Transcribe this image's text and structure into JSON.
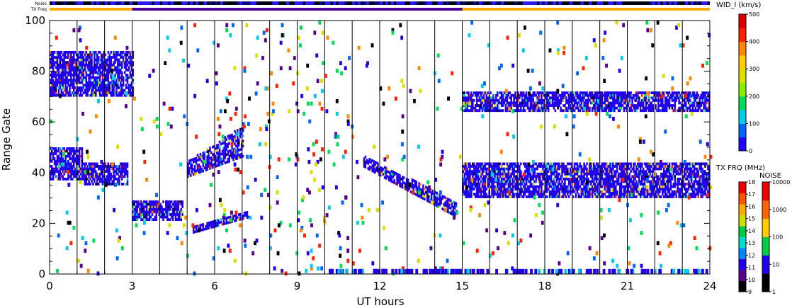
{
  "chart_data": {
    "type": "scatter",
    "title": "",
    "xlabel": "UT hours",
    "ylabel": "Range Gate",
    "xlim": [
      0,
      24
    ],
    "ylim": [
      0,
      100
    ],
    "x_ticks": [
      0,
      3,
      6,
      9,
      12,
      15,
      18,
      21,
      24
    ],
    "y_ticks": [
      0,
      20,
      40,
      60,
      80,
      100
    ],
    "grid": "vertical lines at each 3-hour boundary",
    "top_bars": {
      "noise_label": "Noise",
      "txfreq_label": "TX Freq",
      "txfreq_segments": [
        {
          "start": 0,
          "end": 3,
          "color": "#ffa500"
        },
        {
          "start": 3,
          "end": 15,
          "color": "#4b00a0"
        },
        {
          "start": 15,
          "end": 24,
          "color": "#ffa500"
        }
      ]
    },
    "colorbars": {
      "width": {
        "title": "WID_l (km/s)",
        "ticks": [
          "0",
          "100",
          "200",
          "300",
          "400",
          "500"
        ],
        "colors": [
          "#2200ff",
          "#0066ff",
          "#00ccee",
          "#00dd55",
          "#88ee00",
          "#dddd00",
          "#ffcc00",
          "#ff8800",
          "#ff2200",
          "#dd0000"
        ]
      },
      "txfreq": {
        "title": "TX FRQ (MHz)",
        "ticks": [
          "9",
          "10",
          "11",
          "12",
          "13",
          "14",
          "15",
          "16",
          "17",
          "18"
        ],
        "colors": [
          "#000000",
          "#5a0090",
          "#2200ee",
          "#0088ff",
          "#00ddcc",
          "#00cc44",
          "#ccdd00",
          "#ffaa00",
          "#ff5500",
          "#ee0000"
        ]
      },
      "noise": {
        "title": "NOISE",
        "ticks": [
          "1",
          "10",
          "100",
          "1000",
          "10000"
        ],
        "colors": [
          "#000000",
          "#2200ee",
          "#00cc44",
          "#ffcc00",
          "#ff6600",
          "#ee0000"
        ]
      }
    },
    "echo_bands": [
      {
        "x_start": 0.0,
        "x_end": 1.2,
        "gate_low": 37,
        "gate_high": 50,
        "color": "#2200ee"
      },
      {
        "x_start": 1.2,
        "x_end": 2.8,
        "gate_low": 35,
        "gate_high": 44,
        "color": "#2200ee"
      },
      {
        "x_start": 3.0,
        "x_end": 4.8,
        "gate_low": 21,
        "gate_high": 29,
        "color": "#2200ee"
      },
      {
        "x_start": 5.0,
        "x_end": 7.0,
        "gate_low": 38,
        "gate_high": 58,
        "color": "#2200ee"
      },
      {
        "x_start": 5.2,
        "x_end": 7.2,
        "gate_low": 16,
        "gate_high": 25,
        "color": "#2200ee"
      },
      {
        "x_start": 11.4,
        "x_end": 14.8,
        "gate_low": 22,
        "gate_high": 46,
        "color": "#2200ee"
      },
      {
        "x_start": 15.0,
        "x_end": 24.0,
        "gate_low": 30,
        "gate_high": 44,
        "color": "#2200ee"
      },
      {
        "x_start": 15.0,
        "x_end": 24.0,
        "gate_low": 64,
        "gate_high": 72,
        "color": "#2200ee"
      },
      {
        "x_start": 0.0,
        "x_end": 3.0,
        "gate_low": 70,
        "gate_high": 88,
        "color": "#2200ee"
      }
    ]
  }
}
